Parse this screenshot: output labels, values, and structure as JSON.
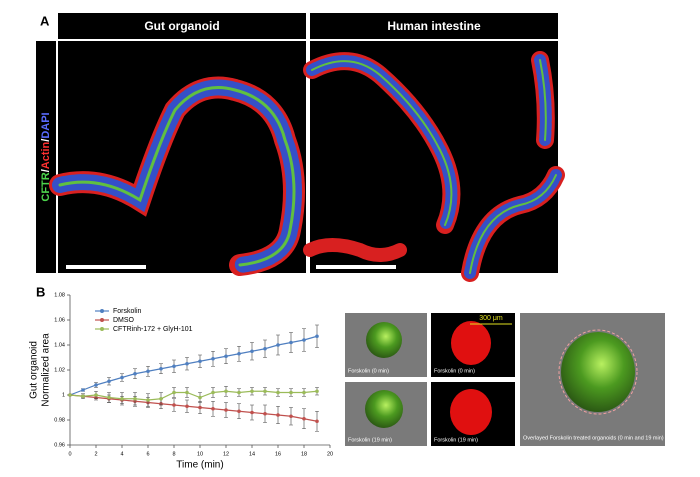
{
  "panel_a": {
    "label": "A",
    "headers": [
      "Gut organoid",
      "Human intestine"
    ],
    "stain": [
      {
        "text": "CFTR",
        "color": "#4cd44c"
      },
      {
        "text": "/",
        "color": "#ffffff"
      },
      {
        "text": "Actin",
        "color": "#ff3030"
      },
      {
        "text": "/",
        "color": "#ffffff"
      },
      {
        "text": "DAPI",
        "color": "#5a6cff"
      }
    ]
  },
  "panel_b": {
    "label": "B",
    "scale_bar": "300 μm",
    "captions": [
      "Forskolin (0 min)",
      "Forskolin (0 min)",
      "Forskolin (19 min)",
      "Forskolin (19 min)",
      "Overlayed Forskolin treated organoids (0 min and 19 min)"
    ]
  },
  "chart_data": {
    "type": "line",
    "xlabel": "Time (min)",
    "ylabel": [
      "Gut organoid",
      "Normalized area"
    ],
    "x": [
      0,
      1,
      2,
      3,
      4,
      5,
      6,
      7,
      8,
      9,
      10,
      11,
      12,
      13,
      14,
      15,
      16,
      17,
      18,
      19
    ],
    "xlim": [
      0,
      20
    ],
    "xticks": [
      0,
      2,
      4,
      6,
      8,
      10,
      12,
      14,
      16,
      18,
      20
    ],
    "ylim": [
      0.96,
      1.08
    ],
    "yticks": [
      0.96,
      0.98,
      1,
      1.02,
      1.04,
      1.06,
      1.08
    ],
    "legend": "upper left",
    "series": [
      {
        "name": "Forskolin",
        "color": "#4f7fc0",
        "values": [
          1,
          1.004,
          1.008,
          1.011,
          1.014,
          1.017,
          1.019,
          1.021,
          1.023,
          1.025,
          1.027,
          1.029,
          1.031,
          1.033,
          1.035,
          1.037,
          1.04,
          1.042,
          1.044,
          1.047
        ],
        "errors": [
          0,
          0.001,
          0.002,
          0.003,
          0.003,
          0.004,
          0.004,
          0.004,
          0.005,
          0.005,
          0.005,
          0.006,
          0.006,
          0.006,
          0.007,
          0.007,
          0.008,
          0.008,
          0.009,
          0.009
        ]
      },
      {
        "name": "DMSO",
        "color": "#c0504d",
        "values": [
          1,
          0.999,
          0.998,
          0.997,
          0.996,
          0.995,
          0.994,
          0.993,
          0.992,
          0.991,
          0.99,
          0.989,
          0.988,
          0.987,
          0.986,
          0.985,
          0.984,
          0.983,
          0.981,
          0.979
        ],
        "errors": [
          0,
          0.001,
          0.002,
          0.003,
          0.003,
          0.004,
          0.004,
          0.004,
          0.005,
          0.005,
          0.005,
          0.006,
          0.006,
          0.006,
          0.006,
          0.007,
          0.007,
          0.007,
          0.008,
          0.008
        ]
      },
      {
        "name": "CFTRinh-172 + GlyH-101",
        "color": "#9bbb59",
        "values": [
          1,
          0.999,
          1,
          0.998,
          0.997,
          0.997,
          0.996,
          0.997,
          1.002,
          1.002,
          0.998,
          1.002,
          1.003,
          1.002,
          1.003,
          1.003,
          1.002,
          1.002,
          1.002,
          1.003
        ],
        "errors": [
          0,
          0.002,
          0.003,
          0.004,
          0.005,
          0.005,
          0.005,
          0.005,
          0.004,
          0.004,
          0.004,
          0.004,
          0.004,
          0.003,
          0.003,
          0.003,
          0.003,
          0.003,
          0.003,
          0.003
        ]
      }
    ]
  }
}
